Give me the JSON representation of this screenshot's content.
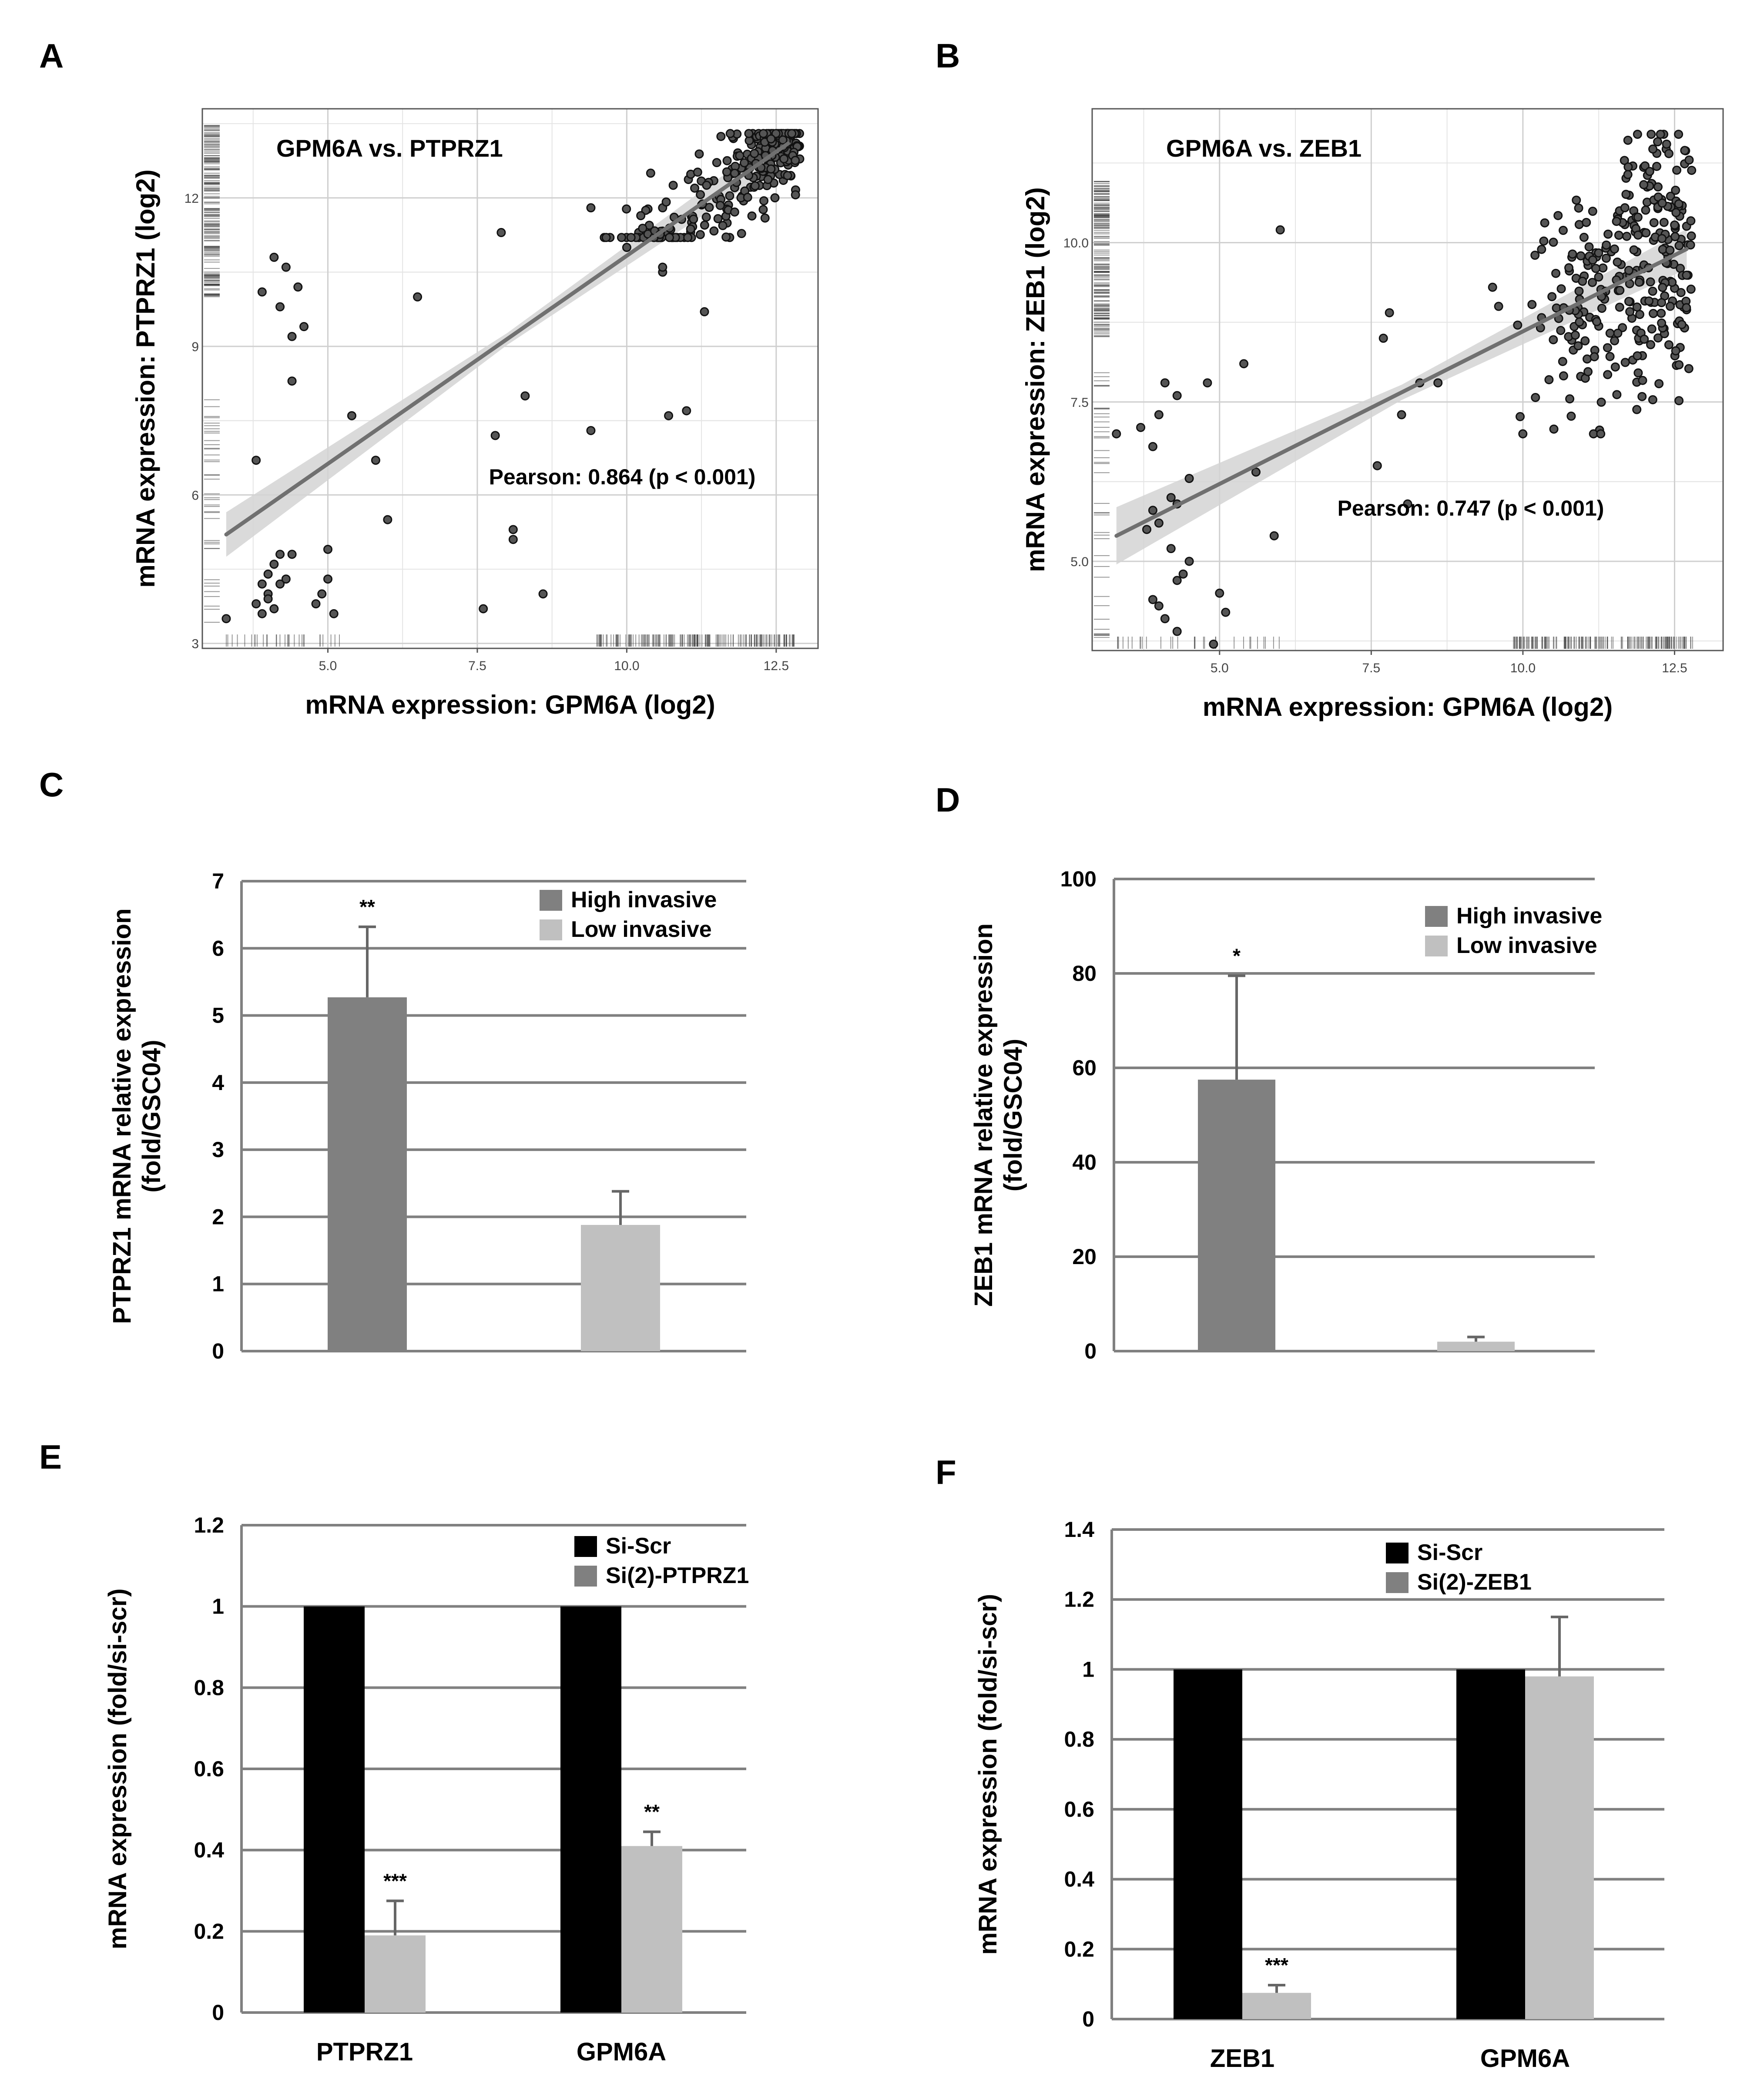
{
  "colors": {
    "bar_dark": "#808080",
    "bar_light": "#c0c0c0",
    "bar_black": "#000000",
    "grid": "#808080",
    "scatter_grid": "#cfcfcf",
    "point": "#555555",
    "fit_line": "#707070",
    "ci_band": "#d3d3d3"
  },
  "chart_data": [
    {
      "panel": "A",
      "type": "scatter",
      "title": "GPM6A vs. PTPRZ1",
      "xlabel": "mRNA expression: GPM6A (log2)",
      "ylabel": "mRNA expression: PTPRZ1 (log2)",
      "xlim": [
        2.9,
        13.2
      ],
      "ylim": [
        2.9,
        13.8
      ],
      "xticks": [
        5.0,
        7.5,
        10.0,
        12.5
      ],
      "xtick_labels": [
        "5.0",
        "7.5",
        "10.0",
        "12.5"
      ],
      "yticks": [
        3,
        6,
        9,
        12
      ],
      "ytick_labels": [
        "3",
        "6",
        "9",
        "12"
      ],
      "annotation": "Pearson: 0.864 (p < 0.001)",
      "fit": {
        "x": [
          3.3,
          12.7
        ],
        "y": [
          5.2,
          13.1
        ]
      },
      "points": [
        [
          3.3,
          3.5
        ],
        [
          3.8,
          3.8
        ],
        [
          3.9,
          3.6
        ],
        [
          4.0,
          4.0
        ],
        [
          4.1,
          3.7
        ],
        [
          4.2,
          4.2
        ],
        [
          4.0,
          4.4
        ],
        [
          4.1,
          4.6
        ],
        [
          4.2,
          4.8
        ],
        [
          4.4,
          4.8
        ],
        [
          4.3,
          4.3
        ],
        [
          4.0,
          3.9
        ],
        [
          3.9,
          4.2
        ],
        [
          4.8,
          3.8
        ],
        [
          5.0,
          4.3
        ],
        [
          5.0,
          4.9
        ],
        [
          4.9,
          4.0
        ],
        [
          5.1,
          3.6
        ],
        [
          3.8,
          6.7
        ],
        [
          3.9,
          10.1
        ],
        [
          4.1,
          10.8
        ],
        [
          4.2,
          9.8
        ],
        [
          4.3,
          10.6
        ],
        [
          4.4,
          9.2
        ],
        [
          4.5,
          10.2
        ],
        [
          4.6,
          9.4
        ],
        [
          4.4,
          8.3
        ],
        [
          5.4,
          7.6
        ],
        [
          5.8,
          6.7
        ],
        [
          6.0,
          5.5
        ],
        [
          6.5,
          10.0
        ],
        [
          7.6,
          3.7
        ],
        [
          7.8,
          7.2
        ],
        [
          7.9,
          11.3
        ],
        [
          8.1,
          5.3
        ],
        [
          8.1,
          5.1
        ],
        [
          8.3,
          8.0
        ],
        [
          8.6,
          4.0
        ],
        [
          9.4,
          7.3
        ],
        [
          10.7,
          7.6
        ],
        [
          11.0,
          7.7
        ],
        [
          11.3,
          9.7
        ],
        [
          10.6,
          10.5
        ],
        [
          10.6,
          10.6
        ],
        [
          9.4,
          11.8
        ],
        [
          10.0,
          11.0
        ],
        [
          10.2,
          11.3
        ],
        [
          10.4,
          12.5
        ],
        [
          10.6,
          11.8
        ]
      ],
      "cluster": {
        "x_range": [
          9.6,
          12.9
        ],
        "y_range": [
          11.2,
          13.3
        ],
        "count": 260
      },
      "x_rug": {
        "low": [
          3.3,
          5.5
        ],
        "high": [
          9.5,
          12.8
        ]
      },
      "y_rug": {
        "low": [
          3.3,
          8.0
        ],
        "high": [
          10.0,
          13.5
        ]
      }
    },
    {
      "panel": "B",
      "type": "scatter",
      "title": "GPM6A vs. ZEB1",
      "xlabel": "mRNA expression: GPM6A (log2)",
      "ylabel": "mRNA expression: ZEB1 (log2)",
      "xlim": [
        2.9,
        13.3
      ],
      "ylim": [
        3.6,
        12.1
      ],
      "xticks": [
        5.0,
        7.5,
        10.0,
        12.5
      ],
      "xtick_labels": [
        "5.0",
        "7.5",
        "10.0",
        "12.5"
      ],
      "yticks": [
        5.0,
        7.5,
        10.0
      ],
      "ytick_labels": [
        "5.0",
        "7.5",
        "10.0"
      ],
      "annotation": "Pearson: 0.747 (p < 0.001)",
      "fit": {
        "x": [
          3.3,
          12.7
        ],
        "y": [
          5.4,
          9.9
        ]
      },
      "points": [
        [
          3.3,
          7.0
        ],
        [
          3.7,
          7.1
        ],
        [
          3.9,
          6.8
        ],
        [
          4.0,
          7.3
        ],
        [
          4.1,
          7.8
        ],
        [
          4.3,
          7.6
        ],
        [
          4.5,
          6.3
        ],
        [
          4.8,
          7.8
        ],
        [
          5.4,
          8.1
        ],
        [
          3.8,
          5.5
        ],
        [
          3.9,
          5.8
        ],
        [
          4.0,
          5.6
        ],
        [
          4.2,
          6.0
        ],
        [
          4.3,
          5.9
        ],
        [
          4.2,
          5.2
        ],
        [
          4.4,
          4.8
        ],
        [
          4.3,
          4.7
        ],
        [
          4.5,
          5.0
        ],
        [
          3.9,
          4.4
        ],
        [
          4.0,
          4.3
        ],
        [
          4.1,
          4.1
        ],
        [
          4.3,
          3.9
        ],
        [
          5.0,
          4.5
        ],
        [
          5.1,
          4.2
        ],
        [
          4.9,
          3.7
        ],
        [
          5.6,
          6.4
        ],
        [
          5.9,
          5.4
        ],
        [
          6.0,
          10.2
        ],
        [
          7.6,
          6.5
        ],
        [
          7.7,
          8.5
        ],
        [
          7.8,
          8.9
        ],
        [
          8.0,
          7.3
        ],
        [
          8.1,
          5.9
        ],
        [
          8.3,
          7.8
        ],
        [
          8.6,
          7.8
        ],
        [
          9.5,
          9.3
        ],
        [
          9.6,
          9.0
        ]
      ],
      "cluster": {
        "x_range": [
          9.8,
          12.8
        ],
        "y_range": [
          7.0,
          11.7
        ],
        "count": 300
      },
      "x_rug": {
        "low": [
          3.3,
          6.0
        ],
        "high": [
          9.8,
          12.8
        ]
      },
      "y_rug": {
        "low": [
          3.6,
          8.0
        ],
        "high": [
          8.5,
          11.0
        ]
      }
    },
    {
      "panel": "C",
      "type": "bar",
      "ylabel": "PTPRZ1 mRNA relative expression (fold/GSC04)",
      "ylabel_lines": [
        "PTPRZ1 mRNA relative expression",
        "(fold/GSC04)"
      ],
      "categories": [
        ""
      ],
      "ylim": [
        0,
        7
      ],
      "yticks": [
        0,
        1,
        2,
        3,
        4,
        5,
        6,
        7
      ],
      "ytick_labels": [
        "0",
        "1",
        "2",
        "3",
        "4",
        "5",
        "6",
        "7"
      ],
      "series": [
        {
          "name": "High invasive",
          "color": "#808080",
          "values": [
            5.27
          ],
          "errors": [
            1.05
          ],
          "labels": [
            "**"
          ]
        },
        {
          "name": "Low invasive",
          "color": "#c0c0c0",
          "values": [
            1.88
          ],
          "errors": [
            0.5
          ],
          "labels": [
            ""
          ]
        }
      ],
      "legend": "top-right"
    },
    {
      "panel": "D",
      "type": "bar",
      "ylabel": "ZEB1 mRNA relative expression (fold/GSC04)",
      "ylabel_lines": [
        "ZEB1 mRNA relative expression",
        "(fold/GSC04)"
      ],
      "categories": [
        ""
      ],
      "ylim": [
        0,
        100
      ],
      "yticks": [
        0,
        20,
        40,
        60,
        80,
        100
      ],
      "ytick_labels": [
        "0",
        "20",
        "40",
        "60",
        "80",
        "100"
      ],
      "series": [
        {
          "name": "High invasive",
          "color": "#808080",
          "values": [
            57.5
          ],
          "errors": [
            22.0
          ],
          "labels": [
            "*"
          ]
        },
        {
          "name": "Low invasive",
          "color": "#c0c0c0",
          "values": [
            2.0
          ],
          "errors": [
            1.0
          ],
          "labels": [
            ""
          ]
        }
      ],
      "legend": "top-right"
    },
    {
      "panel": "E",
      "type": "bar",
      "ylabel": "mRNA expression (fold/si-scr)",
      "categories": [
        "PTPRZ1",
        "GPM6A"
      ],
      "ylim": [
        0,
        1.2
      ],
      "yticks": [
        0,
        0.2,
        0.4,
        0.6,
        0.8,
        1,
        1.2
      ],
      "ytick_labels": [
        "0",
        "0.2",
        "0.4",
        "0.6",
        "0.8",
        "1",
        "1.2"
      ],
      "series": [
        {
          "name": "Si-Scr",
          "color": "#000000",
          "values": [
            1.0,
            1.0
          ],
          "errors": [
            0,
            0
          ],
          "labels": [
            "",
            ""
          ]
        },
        {
          "name": "Si(2)-PTPRZ1",
          "color": "#c0c0c0",
          "values": [
            0.19,
            0.41
          ],
          "errors": [
            0.085,
            0.035
          ],
          "labels": [
            "***",
            "**"
          ]
        }
      ],
      "legend_swatch_colors": [
        "#000000",
        "#808080"
      ],
      "legend": "top-right"
    },
    {
      "panel": "F",
      "type": "bar",
      "ylabel": "mRNA expression (fold/si-scr)",
      "categories": [
        "ZEB1",
        "GPM6A"
      ],
      "ylim": [
        0,
        1.4
      ],
      "yticks": [
        0,
        0.2,
        0.4,
        0.6,
        0.8,
        1,
        1.2,
        1.4
      ],
      "ytick_labels": [
        "0",
        "0.2",
        "0.4",
        "0.6",
        "0.8",
        "1",
        "1.2",
        "1.4"
      ],
      "series": [
        {
          "name": "Si-Scr",
          "color": "#000000",
          "values": [
            1.0,
            1.0
          ],
          "errors": [
            0,
            0
          ],
          "labels": [
            "",
            ""
          ]
        },
        {
          "name": "Si(2)-ZEB1",
          "color": "#c0c0c0",
          "values": [
            0.075,
            0.98
          ],
          "errors": [
            0.022,
            0.17
          ],
          "labels": [
            "***",
            ""
          ]
        }
      ],
      "legend_swatch_colors": [
        "#000000",
        "#808080"
      ],
      "legend": "top-right"
    }
  ]
}
